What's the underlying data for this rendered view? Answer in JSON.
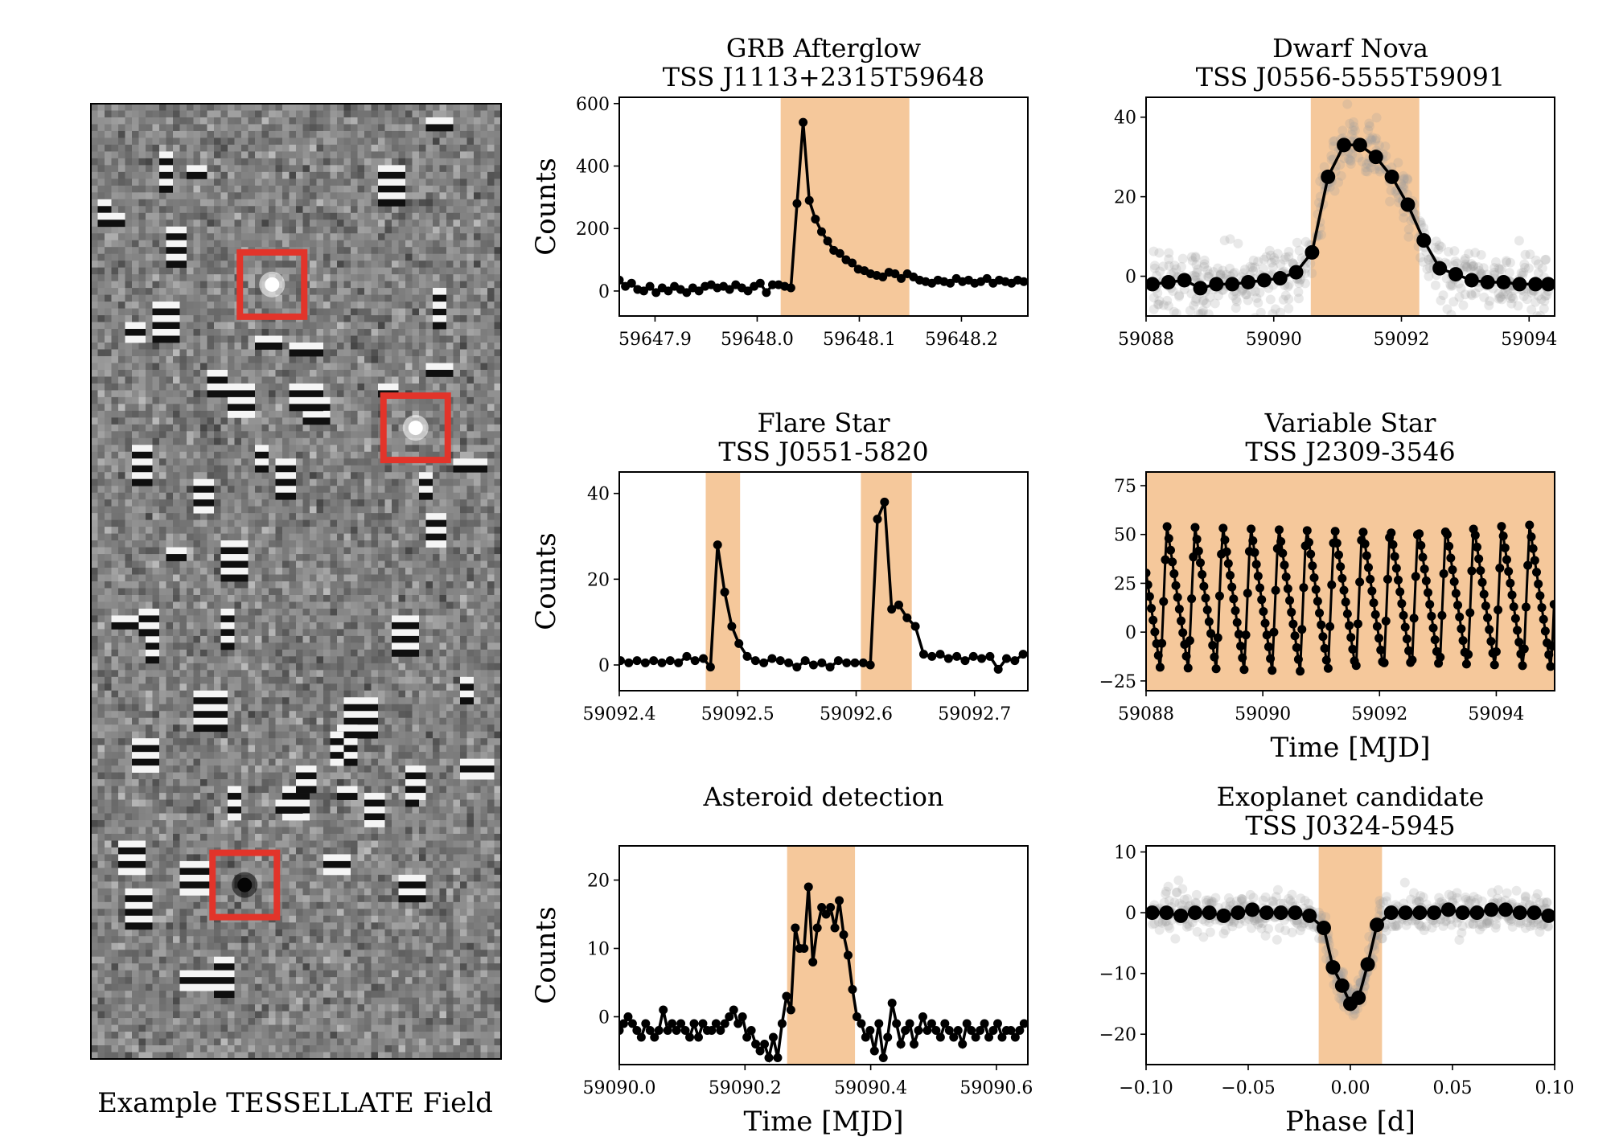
{
  "colors": {
    "highlight": "#f5c89b",
    "line": "#000000",
    "scatter": "#9a9a9a",
    "box": "#e2342a",
    "field_bg": "#8a8a8a"
  },
  "field": {
    "caption": "Example TESSELLATE Field",
    "grid": [
      60,
      140
    ],
    "highlight_boxes": [
      {
        "kind": "bright",
        "col": 26,
        "row": 26
      },
      {
        "kind": "bright",
        "col": 47,
        "row": 47
      },
      {
        "kind": "dark",
        "col": 22,
        "row": 114
      }
    ]
  },
  "chart_data": [
    {
      "id": "grb",
      "type": "line",
      "title": "GRB Afterglow",
      "subtitle": "TSS J1113+2315T59648",
      "xlabel": "",
      "ylabel": "Counts",
      "xlim": [
        59647.865,
        59648.265
      ],
      "ylim": [
        -80,
        620
      ],
      "xticks": [
        59647.9,
        59648.0,
        59648.1,
        59648.2
      ],
      "xticklabels": [
        "59647.9",
        "59648.0",
        "59648.1",
        "59648.2"
      ],
      "yticks": [
        0,
        200,
        400,
        600
      ],
      "yticklabels": [
        "0",
        "200",
        "400",
        "600"
      ],
      "spans": [
        [
          59648.023,
          59648.149
        ]
      ],
      "series": [
        {
          "style": "line-markers",
          "x": [
            59647.865,
            59647.871,
            59647.877,
            59647.883,
            59647.889,
            59647.895,
            59647.901,
            59647.907,
            59647.913,
            59647.919,
            59647.925,
            59647.931,
            59647.937,
            59647.943,
            59647.949,
            59647.955,
            59647.961,
            59647.967,
            59647.973,
            59647.979,
            59647.985,
            59647.991,
            59647.997,
            59648.003,
            59648.009,
            59648.015,
            59648.021,
            59648.027,
            59648.033,
            59648.039,
            59648.045,
            59648.051,
            59648.057,
            59648.063,
            59648.069,
            59648.075,
            59648.081,
            59648.087,
            59648.093,
            59648.099,
            59648.105,
            59648.111,
            59648.117,
            59648.123,
            59648.129,
            59648.135,
            59648.141,
            59648.147,
            59648.153,
            59648.159,
            59648.165,
            59648.171,
            59648.177,
            59648.183,
            59648.189,
            59648.195,
            59648.201,
            59648.207,
            59648.213,
            59648.219,
            59648.225,
            59648.231,
            59648.237,
            59648.243,
            59648.249,
            59648.255,
            59648.261
          ],
          "y": [
            35,
            15,
            25,
            5,
            0,
            15,
            -5,
            10,
            0,
            15,
            5,
            -5,
            10,
            0,
            15,
            20,
            10,
            15,
            5,
            20,
            10,
            0,
            15,
            25,
            -5,
            20,
            20,
            15,
            10,
            280,
            540,
            290,
            230,
            190,
            160,
            130,
            120,
            100,
            90,
            70,
            65,
            55,
            50,
            45,
            60,
            55,
            40,
            55,
            45,
            35,
            30,
            25,
            35,
            30,
            25,
            40,
            30,
            35,
            25,
            30,
            40,
            25,
            35,
            30,
            25,
            35,
            30
          ]
        }
      ]
    },
    {
      "id": "dwarf",
      "type": "scatter",
      "title": "Dwarf Nova",
      "subtitle": "TSS J0556-5555T59091",
      "xlabel": "",
      "ylabel": "",
      "xlim": [
        59088,
        59094.4
      ],
      "ylim": [
        -10,
        45
      ],
      "xticks": [
        59088,
        59090,
        59092,
        59094
      ],
      "xticklabels": [
        "59088",
        "59090",
        "59092",
        "59094"
      ],
      "yticks": [
        0,
        20,
        40
      ],
      "yticklabels": [
        "0",
        "20",
        "40"
      ],
      "spans": [
        [
          59090.58,
          59092.28
        ]
      ],
      "series": [
        {
          "style": "binned",
          "x": [
            59088.1,
            59088.35,
            59088.6,
            59088.85,
            59089.1,
            59089.35,
            59089.6,
            59089.85,
            59090.1,
            59090.35,
            59090.6,
            59090.85,
            59091.1,
            59091.35,
            59091.6,
            59091.85,
            59092.1,
            59092.35,
            59092.6,
            59092.85,
            59093.1,
            59093.35,
            59093.6,
            59093.85,
            59094.1,
            59094.3
          ],
          "y": [
            -2,
            -1.5,
            -1,
            -3,
            -2,
            -2,
            -1.5,
            -1,
            -0.5,
            1,
            6,
            25,
            33,
            33,
            30,
            25,
            18,
            9,
            2,
            0.5,
            -1,
            -1.5,
            -1.5,
            -2,
            -2,
            -2
          ]
        }
      ],
      "scatter_noise": 4
    },
    {
      "id": "flare",
      "type": "line",
      "title": "Flare Star",
      "subtitle": "TSS J0551-5820",
      "xlabel": "",
      "ylabel": "Counts",
      "xlim": [
        59092.4,
        59092.745
      ],
      "ylim": [
        -6,
        45
      ],
      "xticks": [
        59092.4,
        59092.5,
        59092.6,
        59092.7
      ],
      "xticklabels": [
        "59092.4",
        "59092.5",
        "59092.6",
        "59092.7"
      ],
      "yticks": [
        0,
        20,
        40
      ],
      "yticklabels": [
        "0",
        "20",
        "40"
      ],
      "spans": [
        [
          59092.473,
          59092.502
        ],
        [
          59092.604,
          59092.647
        ]
      ],
      "series": [
        {
          "style": "line-markers",
          "x": [
            59092.401,
            59092.408,
            59092.415,
            59092.422,
            59092.429,
            59092.436,
            59092.443,
            59092.45,
            59092.457,
            59092.464,
            59092.471,
            59092.477,
            59092.483,
            59092.489,
            59092.495,
            59092.501,
            59092.508,
            59092.515,
            59092.522,
            59092.529,
            59092.536,
            59092.543,
            59092.55,
            59092.557,
            59092.564,
            59092.571,
            59092.578,
            59092.585,
            59092.592,
            59092.599,
            59092.606,
            59092.612,
            59092.618,
            59092.624,
            59092.63,
            59092.636,
            59092.643,
            59092.65,
            59092.657,
            59092.664,
            59092.671,
            59092.678,
            59092.685,
            59092.692,
            59092.699,
            59092.706,
            59092.713,
            59092.72,
            59092.727,
            59092.734,
            59092.741
          ],
          "y": [
            1,
            0.5,
            1,
            0.5,
            1,
            0.5,
            1,
            0.5,
            2,
            1,
            1.5,
            -0.5,
            28,
            17,
            9,
            5,
            2,
            1,
            0.5,
            1.5,
            1,
            0.5,
            -0.5,
            1,
            0,
            0.5,
            -0.5,
            1,
            0.5,
            0.5,
            0.5,
            0,
            34,
            38,
            13,
            14,
            11,
            9,
            2.5,
            2,
            2.5,
            1.5,
            2,
            1,
            2,
            1.5,
            2,
            -1,
            1.5,
            1,
            2.5
          ]
        }
      ]
    },
    {
      "id": "variable",
      "type": "line",
      "title": "Variable Star",
      "subtitle": "TSS J2309-3546",
      "xlabel": "Time [MJD]",
      "ylabel": "",
      "xlim": [
        59088,
        59095
      ],
      "ylim": [
        -30,
        82
      ],
      "xticks": [
        59088,
        59090,
        59092,
        59094
      ],
      "xticklabels": [
        "59088",
        "59090",
        "59092",
        "59094"
      ],
      "yticks": [
        -25,
        0,
        25,
        50,
        75
      ],
      "yticklabels": [
        "−25",
        "0",
        "25",
        "50",
        "75"
      ],
      "spans": [
        [
          59088,
          59095
        ]
      ],
      "series": [
        {
          "style": "sawtooth",
          "period": 0.478,
          "phase0": 59088.25,
          "min": -20,
          "max": 55
        }
      ]
    },
    {
      "id": "asteroid",
      "type": "line",
      "title": "Asteroid detection",
      "subtitle": "",
      "xlabel": "Time [MJD]",
      "ylabel": "Counts",
      "xlim": [
        59090.0,
        59090.65
      ],
      "ylim": [
        -7,
        25
      ],
      "xticks": [
        59090.0,
        59090.2,
        59090.4,
        59090.6
      ],
      "xticklabels": [
        "59090.0",
        "59090.2",
        "59090.4",
        "59090.6"
      ],
      "yticks": [
        0,
        10,
        20
      ],
      "yticklabels": [
        "0",
        "10",
        "20"
      ],
      "spans": [
        [
          59090.267,
          59090.375
        ]
      ],
      "series": [
        {
          "style": "line-markers",
          "x": [
            59090.0,
            59090.007,
            59090.014,
            59090.021,
            59090.028,
            59090.035,
            59090.042,
            59090.049,
            59090.056,
            59090.063,
            59090.07,
            59090.077,
            59090.084,
            59090.091,
            59090.098,
            59090.105,
            59090.112,
            59090.119,
            59090.126,
            59090.133,
            59090.14,
            59090.147,
            59090.154,
            59090.161,
            59090.168,
            59090.175,
            59090.182,
            59090.189,
            59090.196,
            59090.203,
            59090.21,
            59090.217,
            59090.224,
            59090.231,
            59090.238,
            59090.245,
            59090.252,
            59090.259,
            59090.266,
            59090.273,
            59090.28,
            59090.287,
            59090.294,
            59090.301,
            59090.308,
            59090.315,
            59090.322,
            59090.329,
            59090.336,
            59090.343,
            59090.35,
            59090.357,
            59090.364,
            59090.371,
            59090.378,
            59090.385,
            59090.392,
            59090.399,
            59090.406,
            59090.413,
            59090.42,
            59090.427,
            59090.434,
            59090.441,
            59090.448,
            59090.455,
            59090.462,
            59090.469,
            59090.476,
            59090.483,
            59090.49,
            59090.497,
            59090.504,
            59090.511,
            59090.518,
            59090.525,
            59090.532,
            59090.539,
            59090.546,
            59090.553,
            59090.56,
            59090.567,
            59090.574,
            59090.581,
            59090.588,
            59090.595,
            59090.602,
            59090.609,
            59090.616,
            59090.623,
            59090.63,
            59090.637,
            59090.644
          ],
          "y": [
            -2,
            -1,
            0,
            -1,
            -2,
            -3,
            -1,
            -2,
            -3,
            -2,
            1,
            -2,
            -1,
            -2,
            -1,
            -2,
            -3,
            -1,
            -3,
            -1,
            -2,
            -2,
            -1,
            -2,
            -1,
            0,
            1,
            -1,
            0,
            -3,
            -2,
            -4,
            -5,
            -4,
            -6,
            -3,
            -6,
            -1,
            3,
            1,
            13,
            10,
            10,
            19,
            8,
            13,
            16,
            15,
            16,
            13,
            17,
            12,
            9,
            4,
            0,
            -1,
            -3,
            -2,
            -5,
            -1,
            -6,
            -3,
            2,
            -1,
            -4,
            -2,
            -1,
            -4,
            -2,
            0,
            -2,
            -1,
            -2,
            -3,
            -1,
            -2,
            -3,
            -2,
            -4,
            -1,
            -2,
            -3,
            -2,
            -1,
            -3,
            -2,
            -1,
            -3,
            -2,
            -2,
            -3,
            -2,
            -1
          ]
        }
      ]
    },
    {
      "id": "exoplanet",
      "type": "scatter",
      "title": "Exoplanet candidate",
      "subtitle": "TSS J0324-5945",
      "xlabel": "Phase [d]",
      "ylabel": "",
      "xlim": [
        -0.1,
        0.1
      ],
      "ylim": [
        -25,
        11
      ],
      "xticks": [
        -0.1,
        -0.05,
        0.0,
        0.05,
        0.1
      ],
      "xticklabels": [
        "−0.10",
        "−0.05",
        "0.00",
        "0.05",
        "0.10"
      ],
      "yticks": [
        -20,
        -10,
        0,
        10
      ],
      "yticklabels": [
        "−20",
        "−10",
        "0",
        "10"
      ],
      "spans": [
        [
          -0.0155,
          0.0155
        ]
      ],
      "series": [
        {
          "style": "binned",
          "x": [
            -0.097,
            -0.09,
            -0.083,
            -0.076,
            -0.069,
            -0.062,
            -0.055,
            -0.048,
            -0.041,
            -0.034,
            -0.027,
            -0.02,
            -0.013,
            -0.0085,
            -0.004,
            0.0,
            0.004,
            0.0085,
            0.013,
            0.02,
            0.027,
            0.034,
            0.041,
            0.048,
            0.055,
            0.062,
            0.069,
            0.076,
            0.083,
            0.09,
            0.097
          ],
          "y": [
            0,
            0,
            -0.5,
            0,
            0,
            -0.5,
            0,
            0.5,
            0,
            0,
            0,
            -0.5,
            -2.5,
            -9,
            -12,
            -15,
            -14,
            -8.5,
            -2,
            0,
            0,
            0,
            0,
            0.5,
            0,
            0,
            0.5,
            0.5,
            0,
            0,
            -0.5
          ]
        }
      ],
      "scatter_noise": 1.5
    }
  ]
}
